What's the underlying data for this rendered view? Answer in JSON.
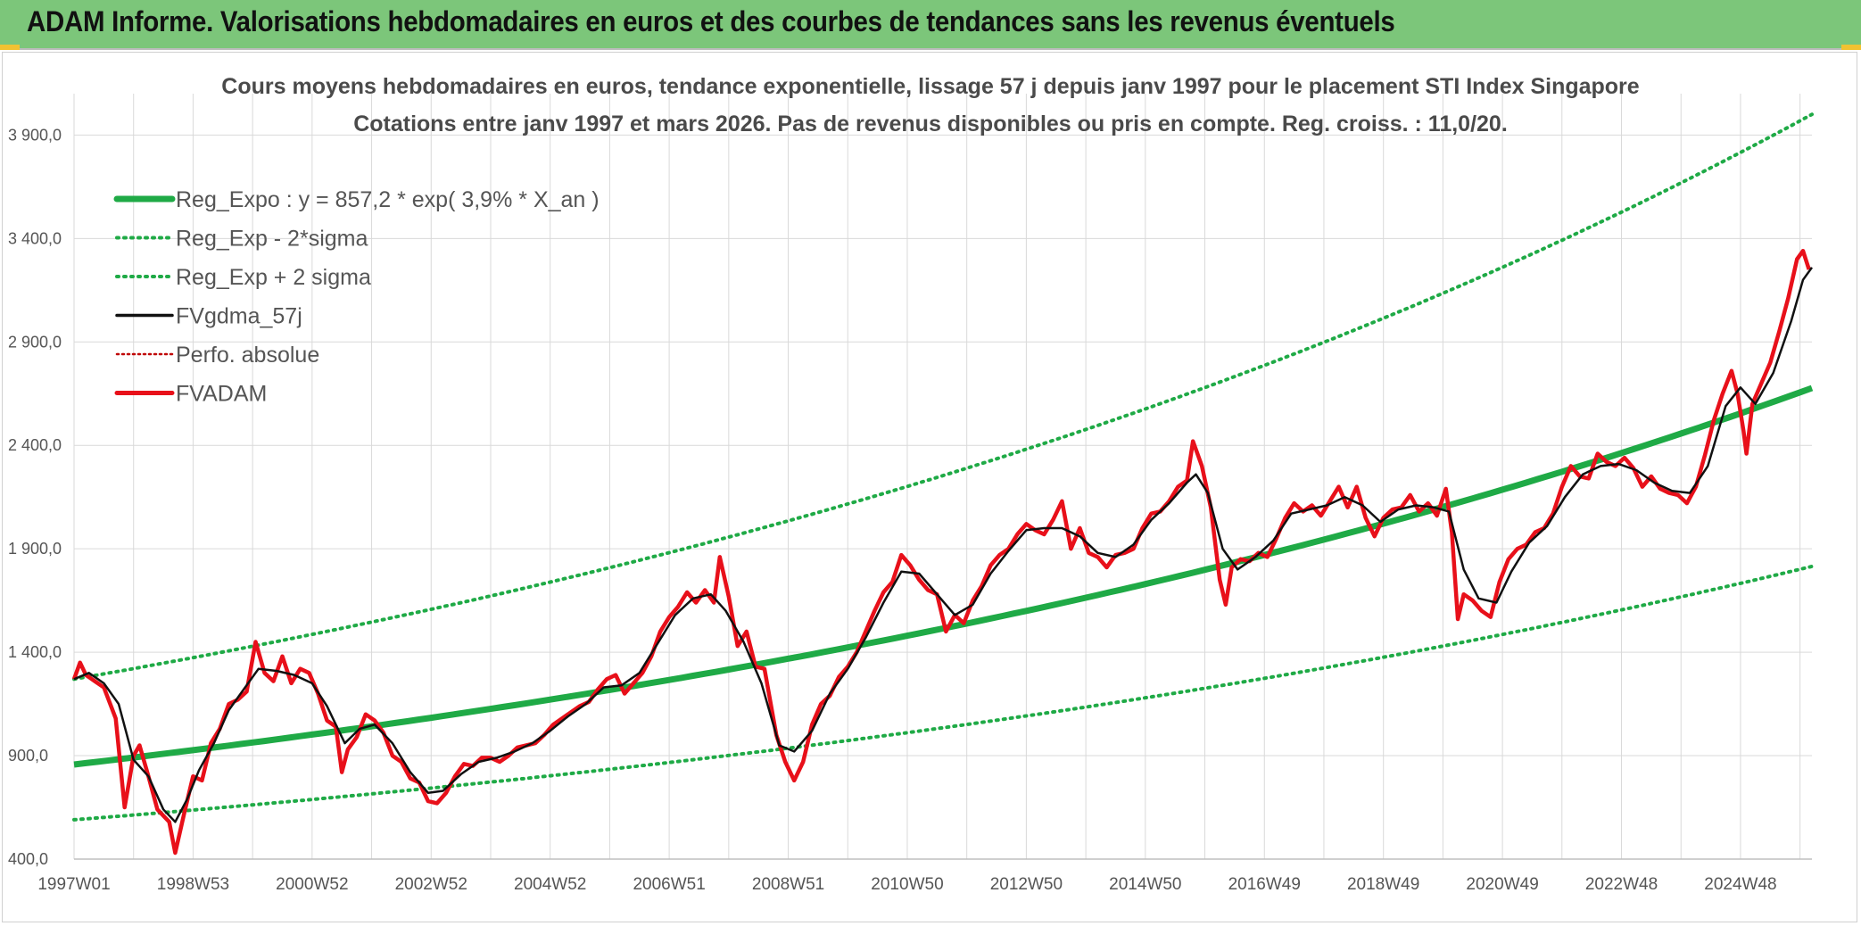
{
  "banner": {
    "title": "ADAM Informe. Valorisations hebdomadaires en euros et des courbes de tendances sans les revenus éventuels"
  },
  "colors": {
    "banner_bg": "#7cc67a",
    "trend_green": "#1faa46",
    "price_red": "#e8101a",
    "smooth_black": "#111111",
    "perf_red": "#c00000",
    "grid": "#d9d9d9"
  },
  "chart_data": {
    "type": "line",
    "title": "Cours moyens hebdomadaires en euros, tendance exponentielle, lissage 57 j depuis janv 1997 pour le placement STI Index Singapore",
    "subtitle": "Cotations entre janv 1997 et mars 2026. Pas de revenus disponibles ou pris en compte. Reg. croiss. : 11,0/20.",
    "xlabel": "",
    "ylabel": "",
    "xlim": [
      1997.0,
      2026.2
    ],
    "ylim": [
      400,
      4100
    ],
    "y_ticks": [
      400,
      900,
      1400,
      1900,
      2400,
      2900,
      3400,
      3900
    ],
    "y_tick_labels": [
      "400,0",
      "900,0",
      "1 400,0",
      "1 900,0",
      "2 400,0",
      "2 900,0",
      "3 400,0",
      "3 900,0"
    ],
    "x_ticks": [
      1997.0,
      1999.0,
      2001.0,
      2003.0,
      2005.0,
      2007.0,
      2009.0,
      2011.0,
      2013.0,
      2015.0,
      2017.0,
      2019.0,
      2021.0,
      2023.0,
      2025.0
    ],
    "x_tick_labels": [
      "1997W01",
      "1998W53",
      "2000W52",
      "2002W52",
      "2004W52",
      "2006W51",
      "2008W51",
      "2010W50",
      "2012W50",
      "2014W50",
      "2016W49",
      "2018W49",
      "2020W49",
      "2022W48",
      "2024W48"
    ],
    "grid": true,
    "legend_position": "top-left",
    "series": [
      {
        "name": "Reg_Expo : y = 857,2 * exp( 3,9% *  X_an )",
        "style": "trend",
        "base": 857.2,
        "rate": 0.039
      },
      {
        "name": "Reg_Exp - 2*sigma",
        "style": "band-low",
        "values_at": [
          [
            1997.0,
            590
          ],
          [
            2026.2,
            1815
          ]
        ]
      },
      {
        "name": "Reg_Exp + 2 sigma",
        "style": "band-high",
        "values_at": [
          [
            1997.0,
            1270
          ],
          [
            2026.2,
            4000
          ]
        ]
      },
      {
        "name": "FVgdma_57j",
        "style": "smooth"
      },
      {
        "name": "Perfo. absolue",
        "style": "perf"
      },
      {
        "name": "FVADAM",
        "style": "price"
      }
    ],
    "price_points": [
      [
        1997.0,
        1270
      ],
      [
        1997.1,
        1350
      ],
      [
        1997.2,
        1290
      ],
      [
        1997.35,
        1260
      ],
      [
        1997.5,
        1230
      ],
      [
        1997.7,
        1080
      ],
      [
        1997.85,
        650
      ],
      [
        1998.0,
        900
      ],
      [
        1998.1,
        950
      ],
      [
        1998.25,
        800
      ],
      [
        1998.4,
        640
      ],
      [
        1998.6,
        580
      ],
      [
        1998.7,
        430
      ],
      [
        1998.85,
        620
      ],
      [
        1999.0,
        800
      ],
      [
        1999.15,
        780
      ],
      [
        1999.3,
        960
      ],
      [
        1999.45,
        1030
      ],
      [
        1999.6,
        1150
      ],
      [
        1999.75,
        1170
      ],
      [
        1999.9,
        1210
      ],
      [
        2000.05,
        1450
      ],
      [
        2000.2,
        1300
      ],
      [
        2000.35,
        1260
      ],
      [
        2000.5,
        1380
      ],
      [
        2000.65,
        1250
      ],
      [
        2000.8,
        1320
      ],
      [
        2000.95,
        1300
      ],
      [
        2001.1,
        1200
      ],
      [
        2001.25,
        1070
      ],
      [
        2001.4,
        1040
      ],
      [
        2001.5,
        820
      ],
      [
        2001.6,
        930
      ],
      [
        2001.75,
        990
      ],
      [
        2001.9,
        1100
      ],
      [
        2002.05,
        1070
      ],
      [
        2002.2,
        1010
      ],
      [
        2002.35,
        900
      ],
      [
        2002.5,
        870
      ],
      [
        2002.65,
        790
      ],
      [
        2002.8,
        770
      ],
      [
        2002.95,
        680
      ],
      [
        2003.1,
        670
      ],
      [
        2003.25,
        720
      ],
      [
        2003.4,
        800
      ],
      [
        2003.55,
        860
      ],
      [
        2003.7,
        850
      ],
      [
        2003.85,
        890
      ],
      [
        2004.0,
        890
      ],
      [
        2004.15,
        870
      ],
      [
        2004.3,
        900
      ],
      [
        2004.45,
        940
      ],
      [
        2004.6,
        950
      ],
      [
        2004.75,
        960
      ],
      [
        2004.9,
        1000
      ],
      [
        2005.05,
        1050
      ],
      [
        2005.2,
        1080
      ],
      [
        2005.35,
        1110
      ],
      [
        2005.5,
        1140
      ],
      [
        2005.65,
        1160
      ],
      [
        2005.8,
        1220
      ],
      [
        2005.95,
        1270
      ],
      [
        2006.1,
        1290
      ],
      [
        2006.25,
        1200
      ],
      [
        2006.4,
        1250
      ],
      [
        2006.55,
        1300
      ],
      [
        2006.7,
        1380
      ],
      [
        2006.85,
        1500
      ],
      [
        2007.0,
        1570
      ],
      [
        2007.15,
        1620
      ],
      [
        2007.3,
        1690
      ],
      [
        2007.45,
        1640
      ],
      [
        2007.6,
        1700
      ],
      [
        2007.75,
        1640
      ],
      [
        2007.85,
        1860
      ],
      [
        2008.0,
        1670
      ],
      [
        2008.15,
        1430
      ],
      [
        2008.3,
        1500
      ],
      [
        2008.45,
        1330
      ],
      [
        2008.6,
        1320
      ],
      [
        2008.8,
        1000
      ],
      [
        2008.95,
        870
      ],
      [
        2009.1,
        780
      ],
      [
        2009.25,
        870
      ],
      [
        2009.4,
        1050
      ],
      [
        2009.55,
        1150
      ],
      [
        2009.7,
        1190
      ],
      [
        2009.85,
        1280
      ],
      [
        2010.0,
        1330
      ],
      [
        2010.15,
        1400
      ],
      [
        2010.3,
        1500
      ],
      [
        2010.45,
        1600
      ],
      [
        2010.6,
        1690
      ],
      [
        2010.75,
        1740
      ],
      [
        2010.9,
        1870
      ],
      [
        2011.05,
        1820
      ],
      [
        2011.2,
        1750
      ],
      [
        2011.35,
        1700
      ],
      [
        2011.5,
        1680
      ],
      [
        2011.65,
        1500
      ],
      [
        2011.8,
        1580
      ],
      [
        2011.95,
        1540
      ],
      [
        2012.1,
        1650
      ],
      [
        2012.25,
        1720
      ],
      [
        2012.4,
        1820
      ],
      [
        2012.55,
        1870
      ],
      [
        2012.7,
        1900
      ],
      [
        2012.85,
        1970
      ],
      [
        2013.0,
        2020
      ],
      [
        2013.15,
        1990
      ],
      [
        2013.3,
        1970
      ],
      [
        2013.45,
        2040
      ],
      [
        2013.6,
        2130
      ],
      [
        2013.75,
        1900
      ],
      [
        2013.9,
        2000
      ],
      [
        2014.05,
        1880
      ],
      [
        2014.2,
        1860
      ],
      [
        2014.35,
        1810
      ],
      [
        2014.5,
        1870
      ],
      [
        2014.65,
        1880
      ],
      [
        2014.8,
        1900
      ],
      [
        2014.95,
        2000
      ],
      [
        2015.1,
        2070
      ],
      [
        2015.25,
        2080
      ],
      [
        2015.4,
        2130
      ],
      [
        2015.55,
        2200
      ],
      [
        2015.7,
        2230
      ],
      [
        2015.8,
        2420
      ],
      [
        2015.95,
        2300
      ],
      [
        2016.1,
        2100
      ],
      [
        2016.25,
        1750
      ],
      [
        2016.35,
        1630
      ],
      [
        2016.45,
        1810
      ],
      [
        2016.6,
        1850
      ],
      [
        2016.75,
        1840
      ],
      [
        2016.9,
        1880
      ],
      [
        2017.05,
        1860
      ],
      [
        2017.2,
        1950
      ],
      [
        2017.35,
        2050
      ],
      [
        2017.5,
        2120
      ],
      [
        2017.65,
        2080
      ],
      [
        2017.8,
        2110
      ],
      [
        2017.95,
        2060
      ],
      [
        2018.1,
        2130
      ],
      [
        2018.25,
        2200
      ],
      [
        2018.4,
        2100
      ],
      [
        2018.55,
        2200
      ],
      [
        2018.7,
        2050
      ],
      [
        2018.85,
        1960
      ],
      [
        2019.0,
        2050
      ],
      [
        2019.15,
        2090
      ],
      [
        2019.3,
        2100
      ],
      [
        2019.45,
        2160
      ],
      [
        2019.6,
        2080
      ],
      [
        2019.75,
        2120
      ],
      [
        2019.9,
        2060
      ],
      [
        2020.05,
        2190
      ],
      [
        2020.15,
        1980
      ],
      [
        2020.25,
        1560
      ],
      [
        2020.35,
        1680
      ],
      [
        2020.5,
        1650
      ],
      [
        2020.65,
        1600
      ],
      [
        2020.8,
        1570
      ],
      [
        2020.95,
        1740
      ],
      [
        2021.1,
        1850
      ],
      [
        2021.25,
        1900
      ],
      [
        2021.4,
        1920
      ],
      [
        2021.55,
        1980
      ],
      [
        2021.7,
        2000
      ],
      [
        2021.85,
        2070
      ],
      [
        2022.0,
        2200
      ],
      [
        2022.15,
        2300
      ],
      [
        2022.3,
        2250
      ],
      [
        2022.45,
        2240
      ],
      [
        2022.6,
        2360
      ],
      [
        2022.75,
        2320
      ],
      [
        2022.9,
        2300
      ],
      [
        2023.05,
        2340
      ],
      [
        2023.2,
        2290
      ],
      [
        2023.35,
        2200
      ],
      [
        2023.5,
        2250
      ],
      [
        2023.65,
        2190
      ],
      [
        2023.8,
        2170
      ],
      [
        2023.95,
        2160
      ],
      [
        2024.1,
        2120
      ],
      [
        2024.25,
        2200
      ],
      [
        2024.4,
        2350
      ],
      [
        2024.55,
        2520
      ],
      [
        2024.7,
        2650
      ],
      [
        2024.85,
        2760
      ],
      [
        2024.95,
        2650
      ],
      [
        2025.05,
        2470
      ],
      [
        2025.1,
        2360
      ],
      [
        2025.2,
        2600
      ],
      [
        2025.35,
        2700
      ],
      [
        2025.5,
        2800
      ],
      [
        2025.65,
        2950
      ],
      [
        2025.8,
        3110
      ],
      [
        2025.95,
        3300
      ],
      [
        2026.05,
        3340
      ],
      [
        2026.15,
        3250
      ]
    ],
    "smooth_points": [
      [
        1997.0,
        1270
      ],
      [
        1997.25,
        1300
      ],
      [
        1997.5,
        1250
      ],
      [
        1997.75,
        1150
      ],
      [
        1998.0,
        880
      ],
      [
        1998.25,
        800
      ],
      [
        1998.5,
        640
      ],
      [
        1998.7,
        580
      ],
      [
        1998.9,
        690
      ],
      [
        1999.1,
        830
      ],
      [
        1999.35,
        960
      ],
      [
        1999.6,
        1120
      ],
      [
        1999.85,
        1220
      ],
      [
        2000.1,
        1320
      ],
      [
        2000.4,
        1310
      ],
      [
        2000.7,
        1290
      ],
      [
        2001.0,
        1250
      ],
      [
        2001.25,
        1140
      ],
      [
        2001.55,
        960
      ],
      [
        2001.8,
        1030
      ],
      [
        2002.05,
        1050
      ],
      [
        2002.35,
        960
      ],
      [
        2002.65,
        820
      ],
      [
        2002.95,
        720
      ],
      [
        2003.2,
        730
      ],
      [
        2003.5,
        810
      ],
      [
        2003.8,
        870
      ],
      [
        2004.1,
        890
      ],
      [
        2004.4,
        920
      ],
      [
        2004.7,
        960
      ],
      [
        2005.0,
        1020
      ],
      [
        2005.3,
        1090
      ],
      [
        2005.6,
        1150
      ],
      [
        2005.9,
        1230
      ],
      [
        2006.2,
        1240
      ],
      [
        2006.5,
        1300
      ],
      [
        2006.8,
        1440
      ],
      [
        2007.1,
        1580
      ],
      [
        2007.4,
        1660
      ],
      [
        2007.7,
        1680
      ],
      [
        2007.95,
        1600
      ],
      [
        2008.25,
        1450
      ],
      [
        2008.55,
        1250
      ],
      [
        2008.85,
        950
      ],
      [
        2009.1,
        920
      ],
      [
        2009.4,
        1020
      ],
      [
        2009.7,
        1200
      ],
      [
        2010.0,
        1320
      ],
      [
        2010.3,
        1470
      ],
      [
        2010.6,
        1640
      ],
      [
        2010.9,
        1790
      ],
      [
        2011.2,
        1780
      ],
      [
        2011.5,
        1680
      ],
      [
        2011.8,
        1580
      ],
      [
        2012.1,
        1630
      ],
      [
        2012.4,
        1780
      ],
      [
        2012.7,
        1890
      ],
      [
        2013.0,
        1990
      ],
      [
        2013.3,
        2000
      ],
      [
        2013.6,
        2000
      ],
      [
        2013.9,
        1960
      ],
      [
        2014.2,
        1880
      ],
      [
        2014.5,
        1860
      ],
      [
        2014.8,
        1920
      ],
      [
        2015.1,
        2040
      ],
      [
        2015.4,
        2120
      ],
      [
        2015.7,
        2220
      ],
      [
        2015.85,
        2260
      ],
      [
        2016.05,
        2170
      ],
      [
        2016.3,
        1900
      ],
      [
        2016.55,
        1800
      ],
      [
        2016.85,
        1860
      ],
      [
        2017.15,
        1940
      ],
      [
        2017.45,
        2070
      ],
      [
        2017.75,
        2090
      ],
      [
        2018.05,
        2110
      ],
      [
        2018.35,
        2150
      ],
      [
        2018.65,
        2110
      ],
      [
        2018.95,
        2030
      ],
      [
        2019.25,
        2090
      ],
      [
        2019.55,
        2110
      ],
      [
        2019.85,
        2100
      ],
      [
        2020.1,
        2080
      ],
      [
        2020.35,
        1800
      ],
      [
        2020.6,
        1660
      ],
      [
        2020.9,
        1640
      ],
      [
        2021.15,
        1790
      ],
      [
        2021.45,
        1930
      ],
      [
        2021.75,
        2010
      ],
      [
        2022.05,
        2150
      ],
      [
        2022.35,
        2260
      ],
      [
        2022.65,
        2300
      ],
      [
        2022.95,
        2310
      ],
      [
        2023.25,
        2280
      ],
      [
        2023.55,
        2220
      ],
      [
        2023.85,
        2180
      ],
      [
        2024.15,
        2170
      ],
      [
        2024.45,
        2300
      ],
      [
        2024.75,
        2590
      ],
      [
        2025.0,
        2680
      ],
      [
        2025.25,
        2600
      ],
      [
        2025.55,
        2750
      ],
      [
        2025.85,
        3000
      ],
      [
        2026.05,
        3200
      ],
      [
        2026.2,
        3260
      ]
    ]
  }
}
